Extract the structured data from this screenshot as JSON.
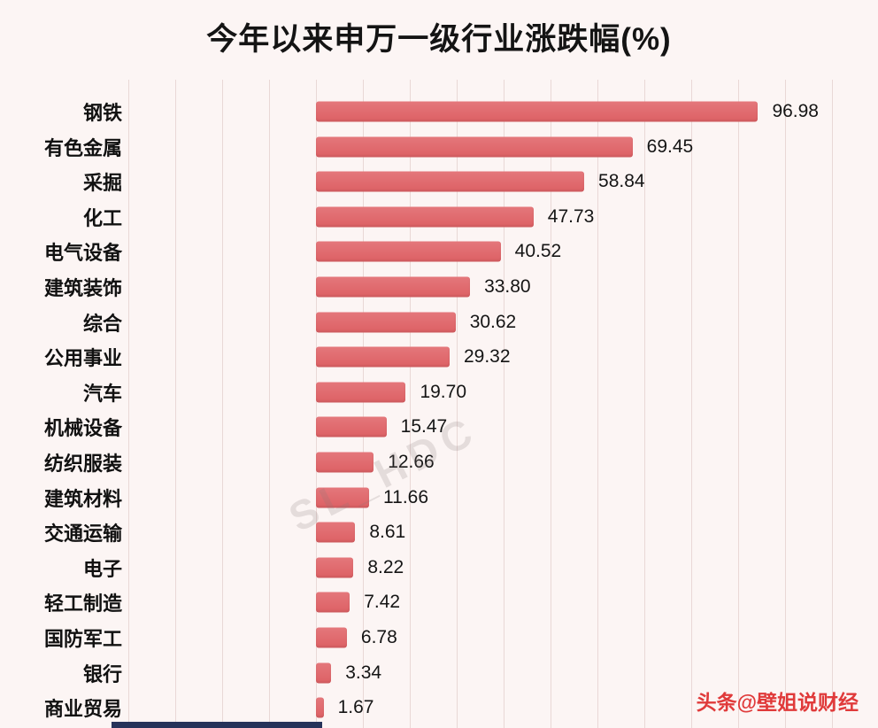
{
  "title": "今年以来申万一级行业涨跌幅(%)",
  "chart_data": {
    "type": "bar",
    "orientation": "horizontal",
    "title": "今年以来申万一级行业涨跌幅(%)",
    "categories": [
      "钢铁",
      "有色金属",
      "采掘",
      "化工",
      "电气设备",
      "建筑装饰",
      "综合",
      "公用事业",
      "汽车",
      "机械设备",
      "纺织服装",
      "建筑材料",
      "交通运输",
      "电子",
      "轻工制造",
      "国防军工",
      "银行",
      "商业贸易"
    ],
    "values": [
      96.98,
      69.45,
      58.84,
      47.73,
      40.52,
      33.8,
      30.62,
      29.32,
      19.7,
      15.47,
      12.66,
      11.66,
      8.61,
      8.22,
      7.42,
      6.78,
      3.34,
      1.67
    ],
    "value_labels": [
      "96.98",
      "69.45",
      "58.84",
      "47.73",
      "40.52",
      "33.80",
      "30.62",
      "29.32",
      "19.70",
      "15.47",
      "12.66",
      "11.66",
      "8.61",
      "8.22",
      "7.42",
      "6.78",
      "3.34",
      "1.67"
    ],
    "xlim": [
      -40,
      115
    ],
    "grid": true,
    "gridline_step": 10,
    "legend": "none",
    "bar_color": "#e0696d"
  },
  "watermarks": {
    "bottom_right": "头条@壁姐说财经",
    "center_faint": "SL_HDC"
  },
  "colors": {
    "background": "#fcf5f4",
    "bar": "#e0696d",
    "gridline": "#e9d8d6",
    "text": "#141414",
    "watermark_red": "#e03a3a",
    "bottom_strip": "#26335a"
  }
}
